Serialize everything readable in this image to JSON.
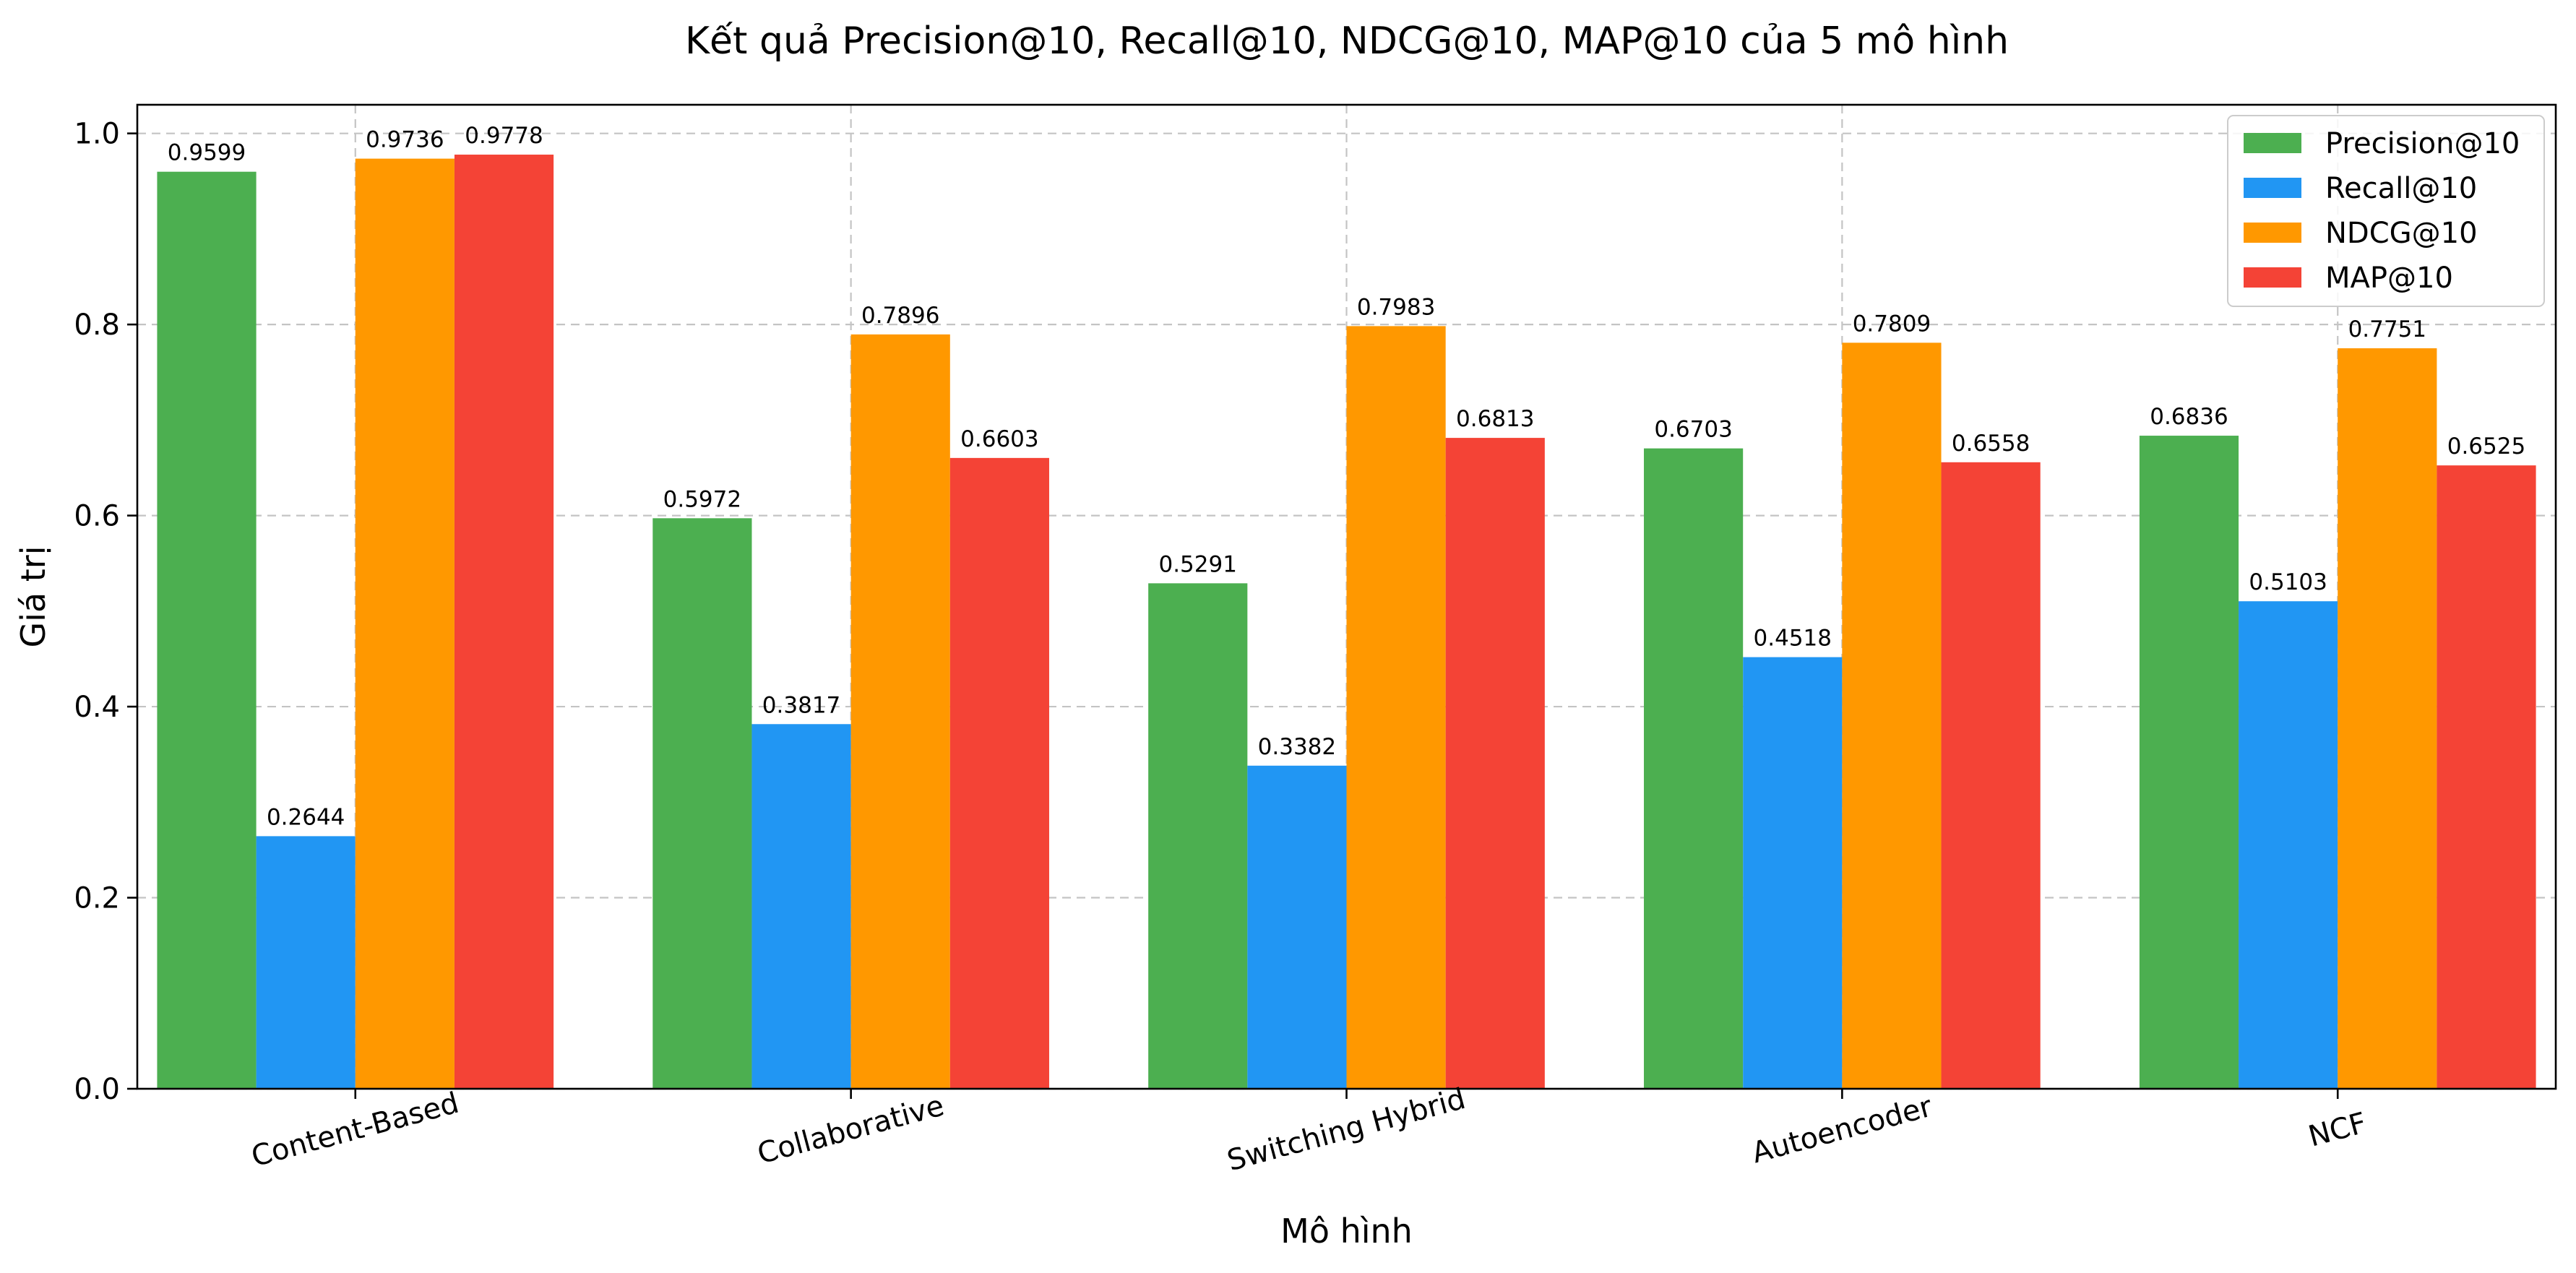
{
  "chart_data": {
    "type": "bar",
    "title": "Kết quả Precision@10, Recall@10, NDCG@10, MAP@10 của 5 mô hình",
    "xlabel": "Mô hình",
    "ylabel": "Giá trị",
    "categories": [
      "Content-Based",
      "Collaborative",
      "Switching Hybrid",
      "Autoencoder",
      "NCF"
    ],
    "ylim": [
      0,
      1.03
    ],
    "yticks": [
      "0.0",
      "0.2",
      "0.4",
      "0.6",
      "0.8",
      "1.0"
    ],
    "grid": true,
    "legend_position": "top-right",
    "series": [
      {
        "name": "Precision@10",
        "color": "#4caf50",
        "values": [
          0.9599,
          0.5972,
          0.5291,
          0.6703,
          0.6836
        ]
      },
      {
        "name": "Recall@10",
        "color": "#2196f3",
        "values": [
          0.2644,
          0.3817,
          0.3382,
          0.4518,
          0.5103
        ]
      },
      {
        "name": "NDCG@10",
        "color": "#ff9800",
        "values": [
          0.9736,
          0.7896,
          0.7983,
          0.7809,
          0.7751
        ]
      },
      {
        "name": "MAP@10",
        "color": "#f44336",
        "values": [
          0.9778,
          0.6603,
          0.6813,
          0.6558,
          0.6525
        ]
      }
    ]
  }
}
